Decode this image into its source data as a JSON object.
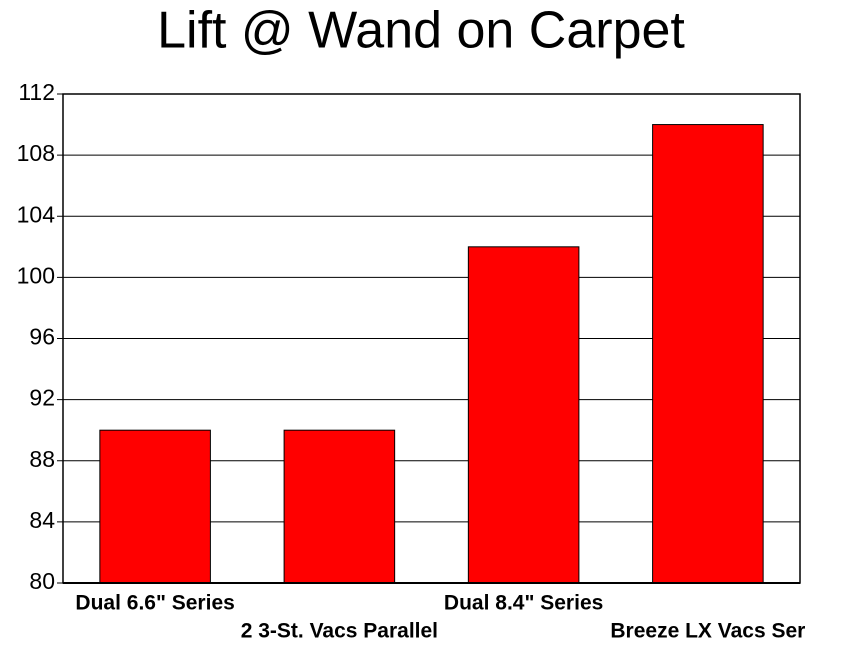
{
  "chart_data": {
    "type": "bar",
    "title": "Lift @ Wand on Carpet",
    "categories": [
      "Dual 6.6\" Series",
      "2 3-St. Vacs Parallel",
      "Dual 8.4\" Series",
      "Breeze LX Vacs Ser"
    ],
    "values": [
      90,
      90,
      102,
      110
    ],
    "color": "#ff0000",
    "ylim": [
      80,
      112
    ],
    "yticks": [
      80,
      84,
      88,
      92,
      96,
      100,
      104,
      108,
      112
    ],
    "grid": true
  }
}
